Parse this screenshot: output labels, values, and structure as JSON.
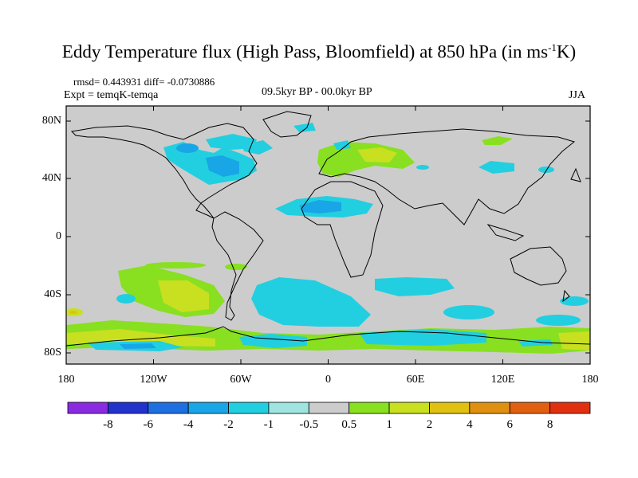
{
  "title": "Eddy Temperature flux (High Pass, Bloomfield) at 850 hPa (in ms",
  "title_sup": "-1",
  "title_end": "K)",
  "stats": "rmsd= 0.443931 diff= -0.0730886",
  "expt": "Expt = temqK-temqa",
  "period": "09.5kyr BP - 00.0kyr BP",
  "season": "JJA",
  "lat_ticks": [
    "80N",
    "40N",
    "0",
    "40S",
    "80S"
  ],
  "lon_ticks": [
    "180",
    "120W",
    "60W",
    "0",
    "60E",
    "120E",
    "180"
  ],
  "colorbar": {
    "labels": [
      "-8",
      "-6",
      "-4",
      "-2",
      "-1",
      "-0.5",
      "0.5",
      "1",
      "2",
      "4",
      "6",
      "8"
    ],
    "colors": [
      "#8a2be2",
      "#2233cc",
      "#1e6fe0",
      "#18a6e6",
      "#22cfe0",
      "#9fe4e0",
      "#cccccc",
      "#88e020",
      "#c8e020",
      "#e0c010",
      "#e09010",
      "#e06010",
      "#e03010"
    ]
  },
  "colors": {
    "land_ocean_bg": "#cccccc"
  }
}
